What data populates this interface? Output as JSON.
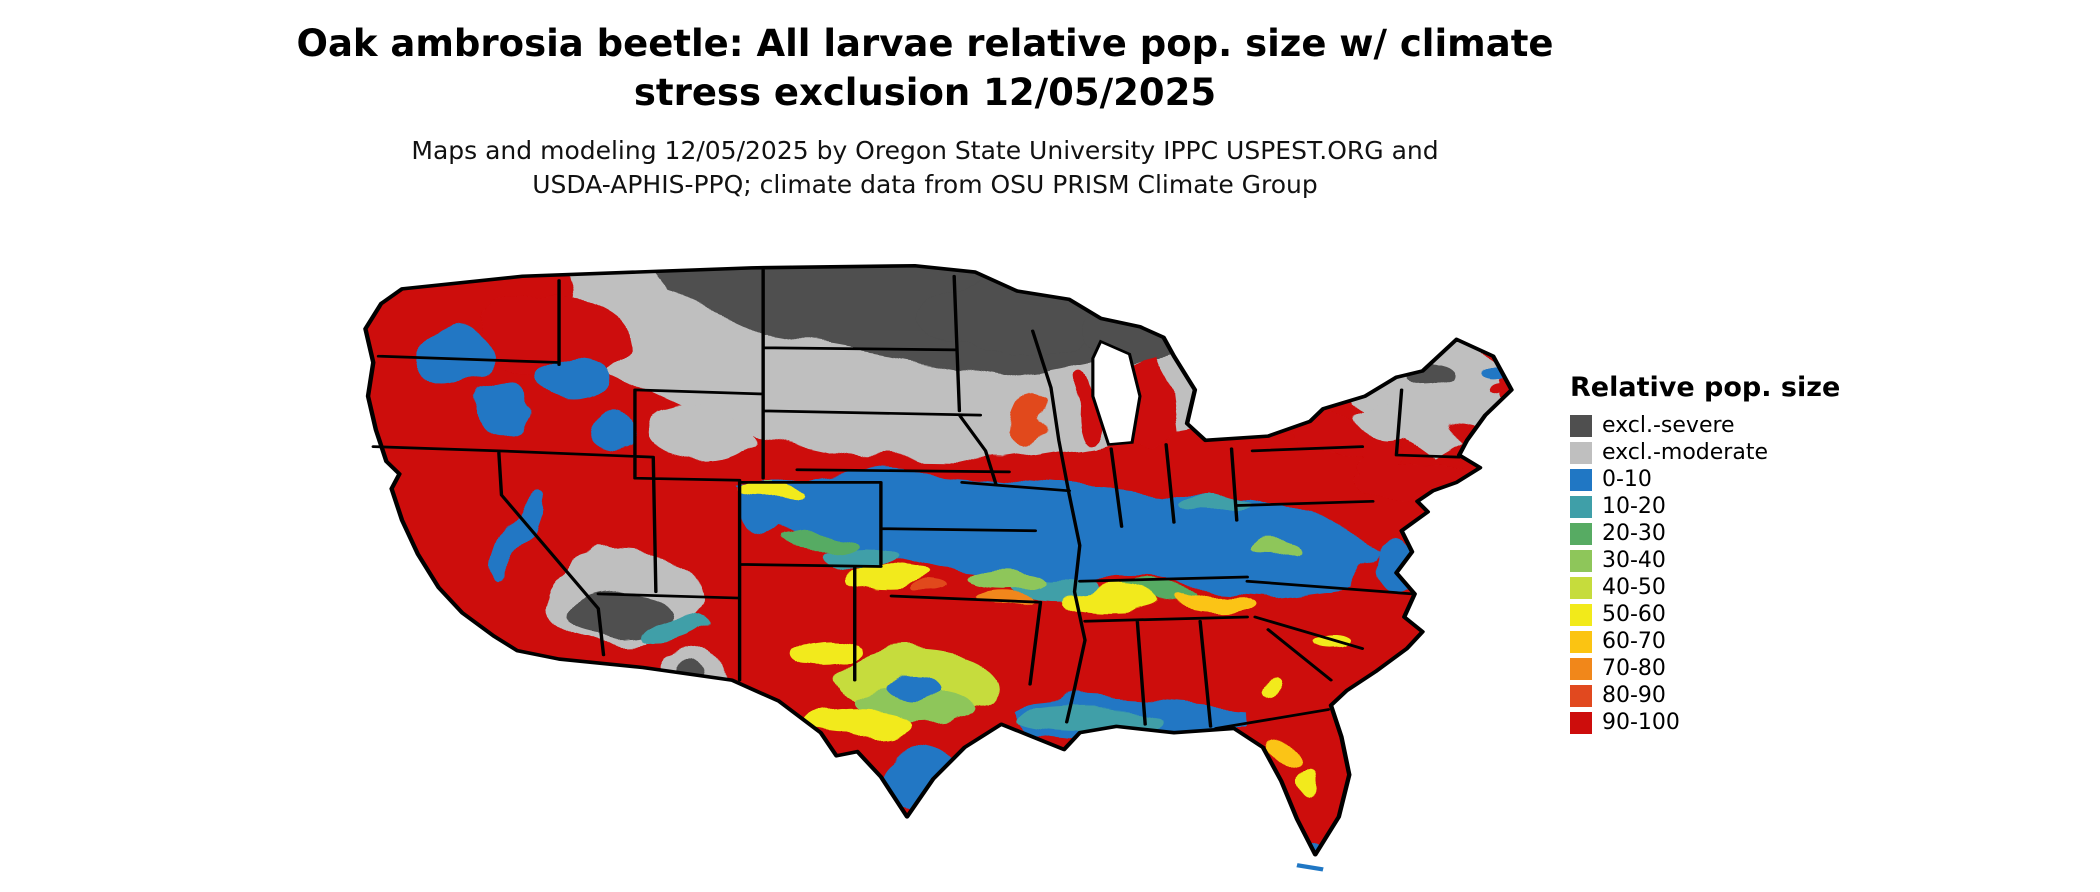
{
  "header": {
    "title_line1": "Oak ambrosia beetle: All larvae relative pop. size w/ climate",
    "title_line2": "stress exclusion 12/05/2025",
    "subtitle_line1": "Maps and modeling 12/05/2025 by Oregon State University IPPC USPEST.ORG and",
    "subtitle_line2": "USDA-APHIS-PPQ; climate data from OSU PRISM Climate Group"
  },
  "legend": {
    "title": "Relative pop. size",
    "items": [
      {
        "label": "excl.-severe",
        "color": "#4f4f4f"
      },
      {
        "label": "excl.-moderate",
        "color": "#bfbfbf"
      },
      {
        "label": "0-10",
        "color": "#2077c4"
      },
      {
        "label": "10-20",
        "color": "#3f9fa8"
      },
      {
        "label": "20-30",
        "color": "#57ab63"
      },
      {
        "label": "30-40",
        "color": "#8ec65a"
      },
      {
        "label": "40-50",
        "color": "#c6dc3c"
      },
      {
        "label": "50-60",
        "color": "#f2ea1a"
      },
      {
        "label": "60-70",
        "color": "#fbc412"
      },
      {
        "label": "70-80",
        "color": "#f1871a"
      },
      {
        "label": "80-90",
        "color": "#e1491f"
      },
      {
        "label": "90-100",
        "color": "#cd0d0c"
      }
    ]
  }
}
